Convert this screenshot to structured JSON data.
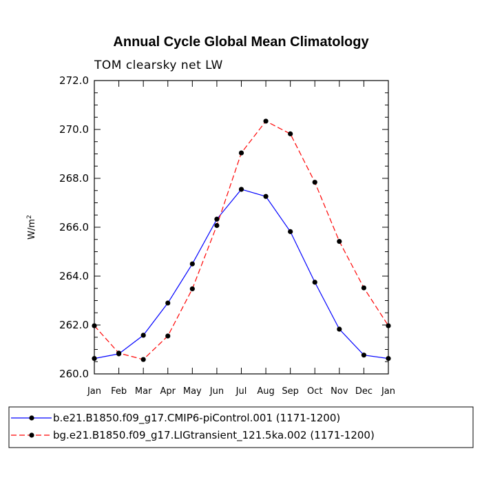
{
  "chart_data": {
    "type": "line",
    "title": "Annual Cycle Global Mean Climatology",
    "subtitle": "TOM clearsky net LW",
    "xlabel": "",
    "ylabel_base": "W/m",
    "ylabel_sup": "2",
    "ylim": [
      260.0,
      272.0
    ],
    "yticks": [
      "260.0",
      "262.0",
      "264.0",
      "266.0",
      "268.0",
      "270.0",
      "272.0"
    ],
    "categories": [
      "Jan",
      "Feb",
      "Mar",
      "Apr",
      "May",
      "Jun",
      "Jul",
      "Aug",
      "Sep",
      "Oct",
      "Nov",
      "Dec",
      "Jan"
    ],
    "series": [
      {
        "name": "b.e21.B1850.f09_g17.CMIP6-piControl.001 (1171-1200)",
        "color": "#0000ff",
        "dash": "solid",
        "values": [
          260.63,
          260.82,
          261.58,
          262.9,
          264.5,
          266.33,
          267.55,
          267.26,
          265.82,
          263.75,
          261.83,
          260.77,
          260.63
        ]
      },
      {
        "name": "bg.e21.B1850.f09_g17.LIGtransient_121.5ka.002 (1171-1200)",
        "color": "#ff0000",
        "dash": "dashed",
        "values": [
          261.97,
          260.85,
          260.59,
          261.55,
          263.48,
          266.07,
          269.04,
          270.34,
          269.82,
          267.84,
          265.42,
          263.52,
          261.97
        ]
      }
    ]
  }
}
